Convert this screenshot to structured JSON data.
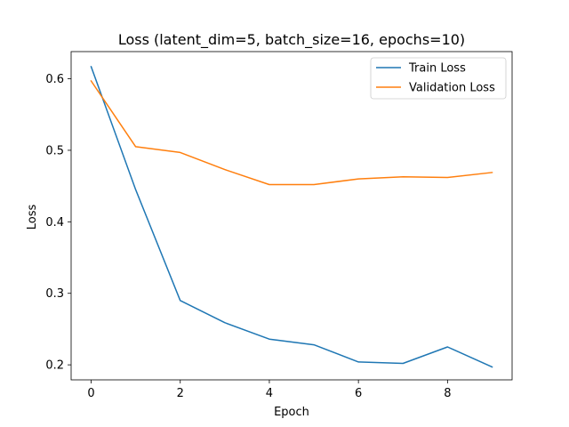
{
  "chart_data": {
    "type": "line",
    "title": "Loss (latent_dim=5, batch_size=16, epochs=10)",
    "xlabel": "Epoch",
    "ylabel": "Loss",
    "x": [
      0,
      1,
      2,
      3,
      4,
      5,
      6,
      7,
      8,
      9
    ],
    "series": [
      {
        "name": "Train Loss",
        "color": "#1f77b4",
        "values": [
          0.617,
          0.445,
          0.29,
          0.259,
          0.236,
          0.228,
          0.204,
          0.202,
          0.225,
          0.197
        ]
      },
      {
        "name": "Validation Loss",
        "color": "#ff7f0e",
        "values": [
          0.597,
          0.505,
          0.497,
          0.473,
          0.452,
          0.452,
          0.46,
          0.463,
          0.462,
          0.469
        ]
      }
    ],
    "xlim": [
      -0.45,
      9.45
    ],
    "ylim": [
      0.179,
      0.638
    ],
    "xticks": [
      0,
      2,
      4,
      6,
      8
    ],
    "yticks": [
      0.2,
      0.3,
      0.4,
      0.5,
      0.6
    ],
    "xtick_labels": [
      "0",
      "2",
      "4",
      "6",
      "8"
    ],
    "ytick_labels": [
      "0.2",
      "0.3",
      "0.4",
      "0.5",
      "0.6"
    ],
    "grid": false,
    "legend_position": "top-right"
  }
}
